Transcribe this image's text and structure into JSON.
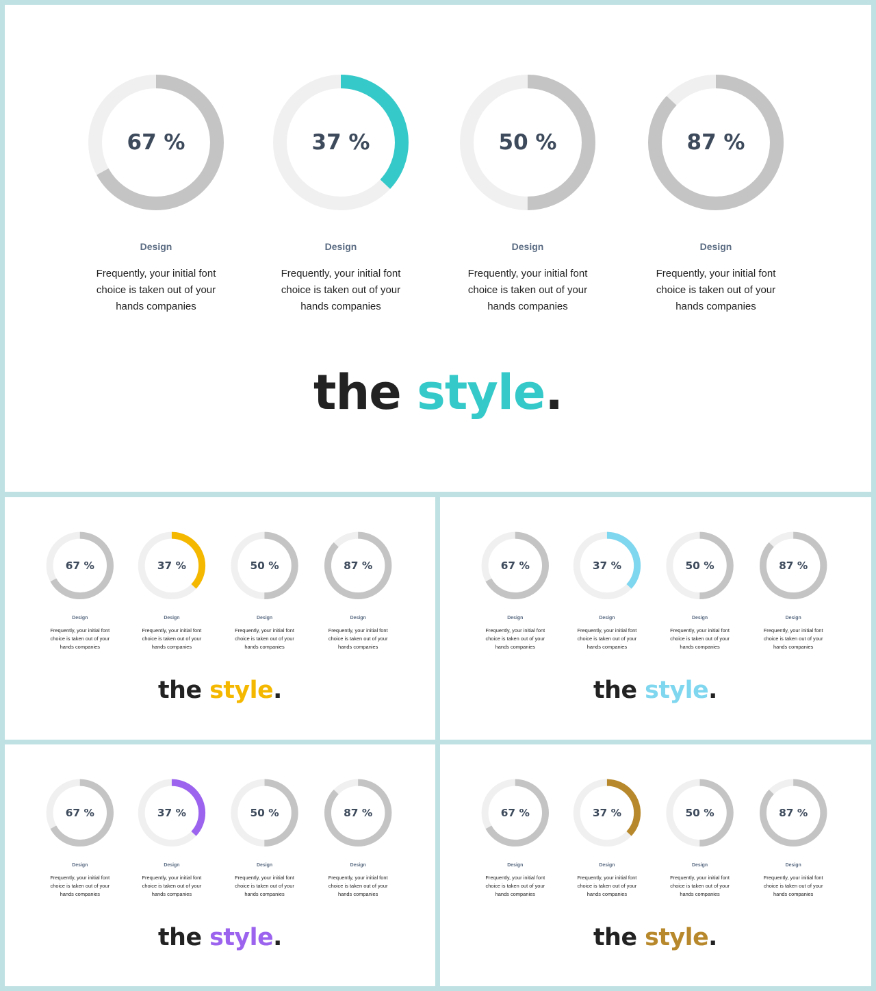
{
  "slides": [
    {
      "accent": "#35c9c9",
      "tagline": {
        "word1": "the",
        "word2": "style",
        "dot": "."
      },
      "metrics": [
        {
          "value": 67,
          "value_label": "67 %",
          "label": "Design",
          "description": "Frequently, your initial font choice is taken out of your hands companies"
        },
        {
          "value": 37,
          "value_label": "37 %",
          "label": "Design",
          "description": "Frequently, your initial font choice is taken out of your hands companies"
        },
        {
          "value": 50,
          "value_label": "50 %",
          "label": "Design",
          "description": "Frequently, your initial font choice is taken out of your hands companies"
        },
        {
          "value": 87,
          "value_label": "87 %",
          "label": "Design",
          "description": "Frequently, your initial font choice is taken out of your hands companies"
        }
      ]
    },
    {
      "accent": "#f5b800",
      "tagline": {
        "word1": "the",
        "word2": "style",
        "dot": "."
      },
      "metrics": [
        {
          "value": 67,
          "value_label": "67 %",
          "label": "Design",
          "description": "Frequently, your initial font choice is taken out of your hands companies"
        },
        {
          "value": 37,
          "value_label": "37 %",
          "label": "Design",
          "description": "Frequently, your initial font choice is taken out of your hands companies"
        },
        {
          "value": 50,
          "value_label": "50 %",
          "label": "Design",
          "description": "Frequently, your initial font choice is taken out of your hands companies"
        },
        {
          "value": 87,
          "value_label": "87 %",
          "label": "Design",
          "description": "Frequently, your initial font choice is taken out of your hands companies"
        }
      ]
    },
    {
      "accent": "#7fd6ef",
      "tagline": {
        "word1": "the",
        "word2": "style",
        "dot": "."
      },
      "metrics": [
        {
          "value": 67,
          "value_label": "67 %",
          "label": "Design",
          "description": "Frequently, your initial font choice is taken out of your hands companies"
        },
        {
          "value": 37,
          "value_label": "37 %",
          "label": "Design",
          "description": "Frequently, your initial font choice is taken out of your hands companies"
        },
        {
          "value": 50,
          "value_label": "50 %",
          "label": "Design",
          "description": "Frequently, your initial font choice is taken out of your hands companies"
        },
        {
          "value": 87,
          "value_label": "87 %",
          "label": "Design",
          "description": "Frequently, your initial font choice is taken out of your hands companies"
        }
      ]
    },
    {
      "accent": "#9b63ee",
      "tagline": {
        "word1": "the",
        "word2": "style",
        "dot": "."
      },
      "metrics": [
        {
          "value": 67,
          "value_label": "67 %",
          "label": "Design",
          "description": "Frequently, your initial font choice is taken out of your hands companies"
        },
        {
          "value": 37,
          "value_label": "37 %",
          "label": "Design",
          "description": "Frequently, your initial font choice is taken out of your hands companies"
        },
        {
          "value": 50,
          "value_label": "50 %",
          "label": "Design",
          "description": "Frequently, your initial font choice is taken out of your hands companies"
        },
        {
          "value": 87,
          "value_label": "87 %",
          "label": "Design",
          "description": "Frequently, your initial font choice is taken out of your hands companies"
        }
      ]
    },
    {
      "accent": "#b8892c",
      "tagline": {
        "word1": "the",
        "word2": "style",
        "dot": "."
      },
      "metrics": [
        {
          "value": 67,
          "value_label": "67 %",
          "label": "Design",
          "description": "Frequently, your initial font choice is taken out of your hands companies"
        },
        {
          "value": 37,
          "value_label": "37 %",
          "label": "Design",
          "description": "Frequently, your initial font choice is taken out of your hands companies"
        },
        {
          "value": 50,
          "value_label": "50 %",
          "label": "Design",
          "description": "Frequently, your initial font choice is taken out of your hands companies"
        },
        {
          "value": 87,
          "value_label": "87 %",
          "label": "Design",
          "description": "Frequently, your initial font choice is taken out of your hands companies"
        }
      ]
    }
  ],
  "colors": {
    "track": "#f0f0f0",
    "arc_gray": "#c4c4c4",
    "value_text": "#3d4a5c",
    "label_text": "#5a6b82"
  },
  "chart_data": [
    {
      "type": "pie",
      "categories": [
        "Design",
        "Design",
        "Design",
        "Design"
      ],
      "values": [
        67,
        37,
        50,
        87
      ],
      "highlight_index": 1,
      "highlight_color": "#35c9c9"
    },
    {
      "type": "pie",
      "categories": [
        "Design",
        "Design",
        "Design",
        "Design"
      ],
      "values": [
        67,
        37,
        50,
        87
      ],
      "highlight_index": 1,
      "highlight_color": "#f5b800"
    },
    {
      "type": "pie",
      "categories": [
        "Design",
        "Design",
        "Design",
        "Design"
      ],
      "values": [
        67,
        37,
        50,
        87
      ],
      "highlight_index": 1,
      "highlight_color": "#7fd6ef"
    },
    {
      "type": "pie",
      "categories": [
        "Design",
        "Design",
        "Design",
        "Design"
      ],
      "values": [
        67,
        37,
        50,
        87
      ],
      "highlight_index": 1,
      "highlight_color": "#9b63ee"
    },
    {
      "type": "pie",
      "categories": [
        "Design",
        "Design",
        "Design",
        "Design"
      ],
      "values": [
        67,
        37,
        50,
        87
      ],
      "highlight_index": 1,
      "highlight_color": "#b8892c"
    }
  ]
}
